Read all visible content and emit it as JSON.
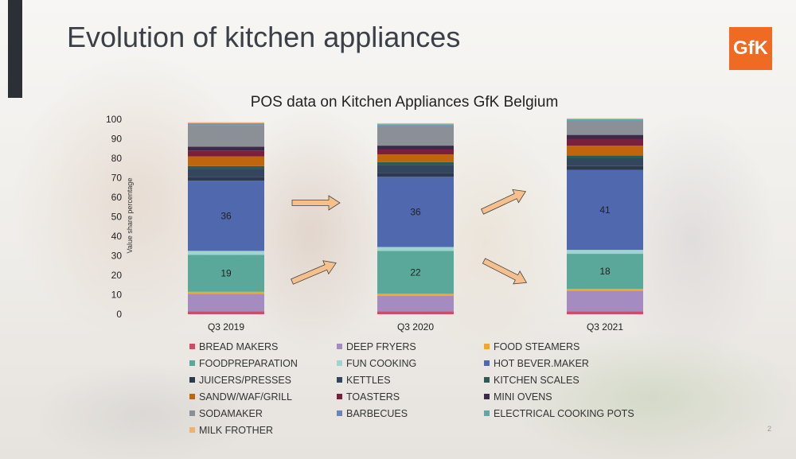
{
  "slide": {
    "title": "Evolution of kitchen appliances",
    "logo_text": "GfK",
    "page_number": "2"
  },
  "chart_data": {
    "type": "bar",
    "stacked": true,
    "title": "POS data on Kitchen Appliances GfK Belgium",
    "ylabel": "Value share percentage",
    "xlabel": "",
    "ylim": [
      0,
      100
    ],
    "yticks": [
      0,
      10,
      20,
      30,
      40,
      50,
      60,
      70,
      80,
      90,
      100
    ],
    "categories": [
      "Q3 2019",
      "Q3 2020",
      "Q3 2021"
    ],
    "legend_position": "bottom",
    "series": [
      {
        "name": "BREAD MAKERS",
        "color": "#d24a6a",
        "values": [
          1.5,
          1.5,
          1.5
        ]
      },
      {
        "name": "DEEP FRYERS",
        "color": "#a58cc0",
        "values": [
          9,
          8,
          10.5
        ]
      },
      {
        "name": "FOOD STEAMERS",
        "color": "#f5a623",
        "values": [
          1,
          1,
          1
        ]
      },
      {
        "name": "FOODPREPARATION",
        "color": "#5aa89a",
        "values": [
          19,
          22,
          18
        ],
        "labels": [
          "19",
          "22",
          "18"
        ]
      },
      {
        "name": "FUN COOKING",
        "color": "#9fd4d0",
        "values": [
          2,
          2,
          2
        ]
      },
      {
        "name": "HOT BEVER.MAKER",
        "color": "#5068ad",
        "values": [
          36,
          36,
          41
        ],
        "labels": [
          "36",
          "36",
          "41"
        ]
      },
      {
        "name": "JUICERS/PRESSES",
        "color": "#2d3a4e",
        "values": [
          2,
          2,
          2
        ]
      },
      {
        "name": "KETTLES",
        "color": "#34465e",
        "values": [
          4,
          4,
          4
        ]
      },
      {
        "name": "KITCHEN SCALES",
        "color": "#2b5a57",
        "values": [
          1.5,
          1.5,
          1.5
        ]
      },
      {
        "name": "SANDW/WAF/GRILL",
        "color": "#c0640d",
        "values": [
          5,
          4,
          5
        ]
      },
      {
        "name": "TOASTERS",
        "color": "#7a1f3d",
        "values": [
          3,
          2.5,
          3.5
        ]
      },
      {
        "name": "MINI OVENS",
        "color": "#3c2a4a",
        "values": [
          2,
          2,
          2
        ]
      },
      {
        "name": "SODAMAKER",
        "color": "#8b8f96",
        "values": [
          11,
          10,
          7
        ]
      },
      {
        "name": "BARBECUES",
        "color": "#6a85b8",
        "values": [
          0.5,
          0.5,
          0.5
        ]
      },
      {
        "name": "ELECTRICAL COOKING POTS",
        "color": "#5fa8a6",
        "values": [
          0.5,
          0.5,
          0.5
        ]
      },
      {
        "name": "MILK FROTHER",
        "color": "#f3b26a",
        "values": [
          0.5,
          0.5,
          0.5
        ]
      }
    ]
  }
}
